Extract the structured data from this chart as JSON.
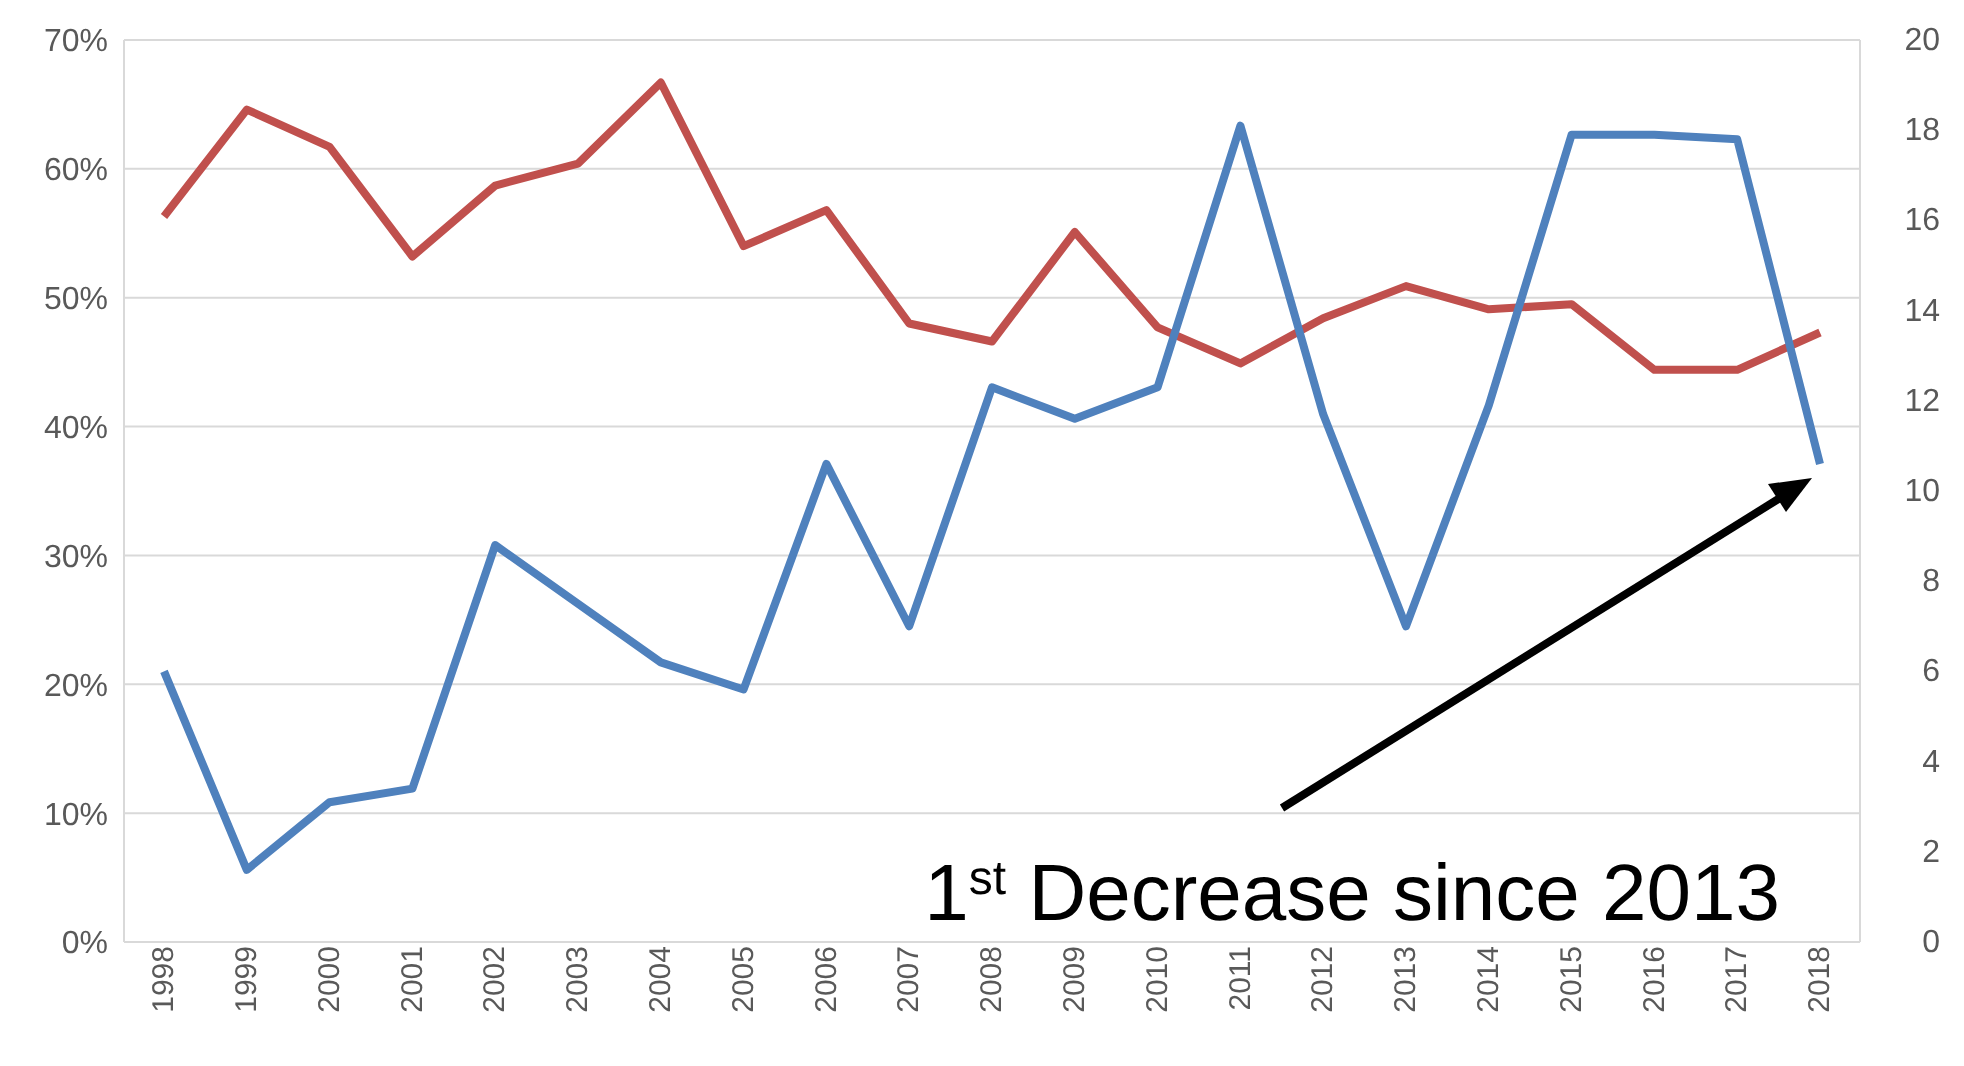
{
  "chart_data": {
    "type": "line",
    "categories": [
      "1998",
      "1999",
      "2000",
      "2001",
      "2002",
      "2003",
      "2004",
      "2005",
      "2006",
      "2007",
      "2008",
      "2009",
      "2010",
      "2011",
      "2012",
      "2013",
      "2014",
      "2015",
      "2016",
      "2017",
      "2018"
    ],
    "series": [
      {
        "color": "#c0504d",
        "values": [
          56.3,
          64.6,
          61.7,
          53.2,
          58.7,
          60.4,
          66.7,
          54.0,
          56.8,
          48.0,
          46.6,
          55.1,
          47.7,
          44.9,
          48.4,
          50.9,
          49.1,
          49.5,
          44.4,
          44.4,
          47.3
        ]
      },
      {
        "color": "#4f81bd",
        "axis": "y2",
        "values": [
          6.0,
          1.6,
          3.1,
          3.4,
          8.8,
          7.5,
          6.2,
          5.6,
          10.6,
          7.0,
          12.3,
          11.6,
          12.3,
          18.1,
          11.7,
          7.0,
          11.9,
          17.9,
          17.9,
          17.8,
          10.6
        ]
      }
    ],
    "ylim": [
      0,
      70
    ],
    "yticks": [
      {
        "value": 0,
        "label": "0%"
      },
      {
        "value": 10,
        "label": "10%"
      },
      {
        "value": 20,
        "label": "20%"
      },
      {
        "value": 30,
        "label": "30%"
      },
      {
        "value": 40,
        "label": "40%"
      },
      {
        "value": 50,
        "label": "50%"
      },
      {
        "value": 60,
        "label": "60%"
      },
      {
        "value": 70,
        "label": "70%"
      }
    ],
    "y2lim": [
      0,
      20
    ],
    "y2ticks": [
      0,
      2,
      4,
      6,
      8,
      10,
      12,
      14,
      16,
      18,
      20
    ],
    "grid": "y",
    "marker": "none",
    "line_style": "solid",
    "annotations": [
      "1$^{st}$ Decrease since 2013"
    ]
  }
}
